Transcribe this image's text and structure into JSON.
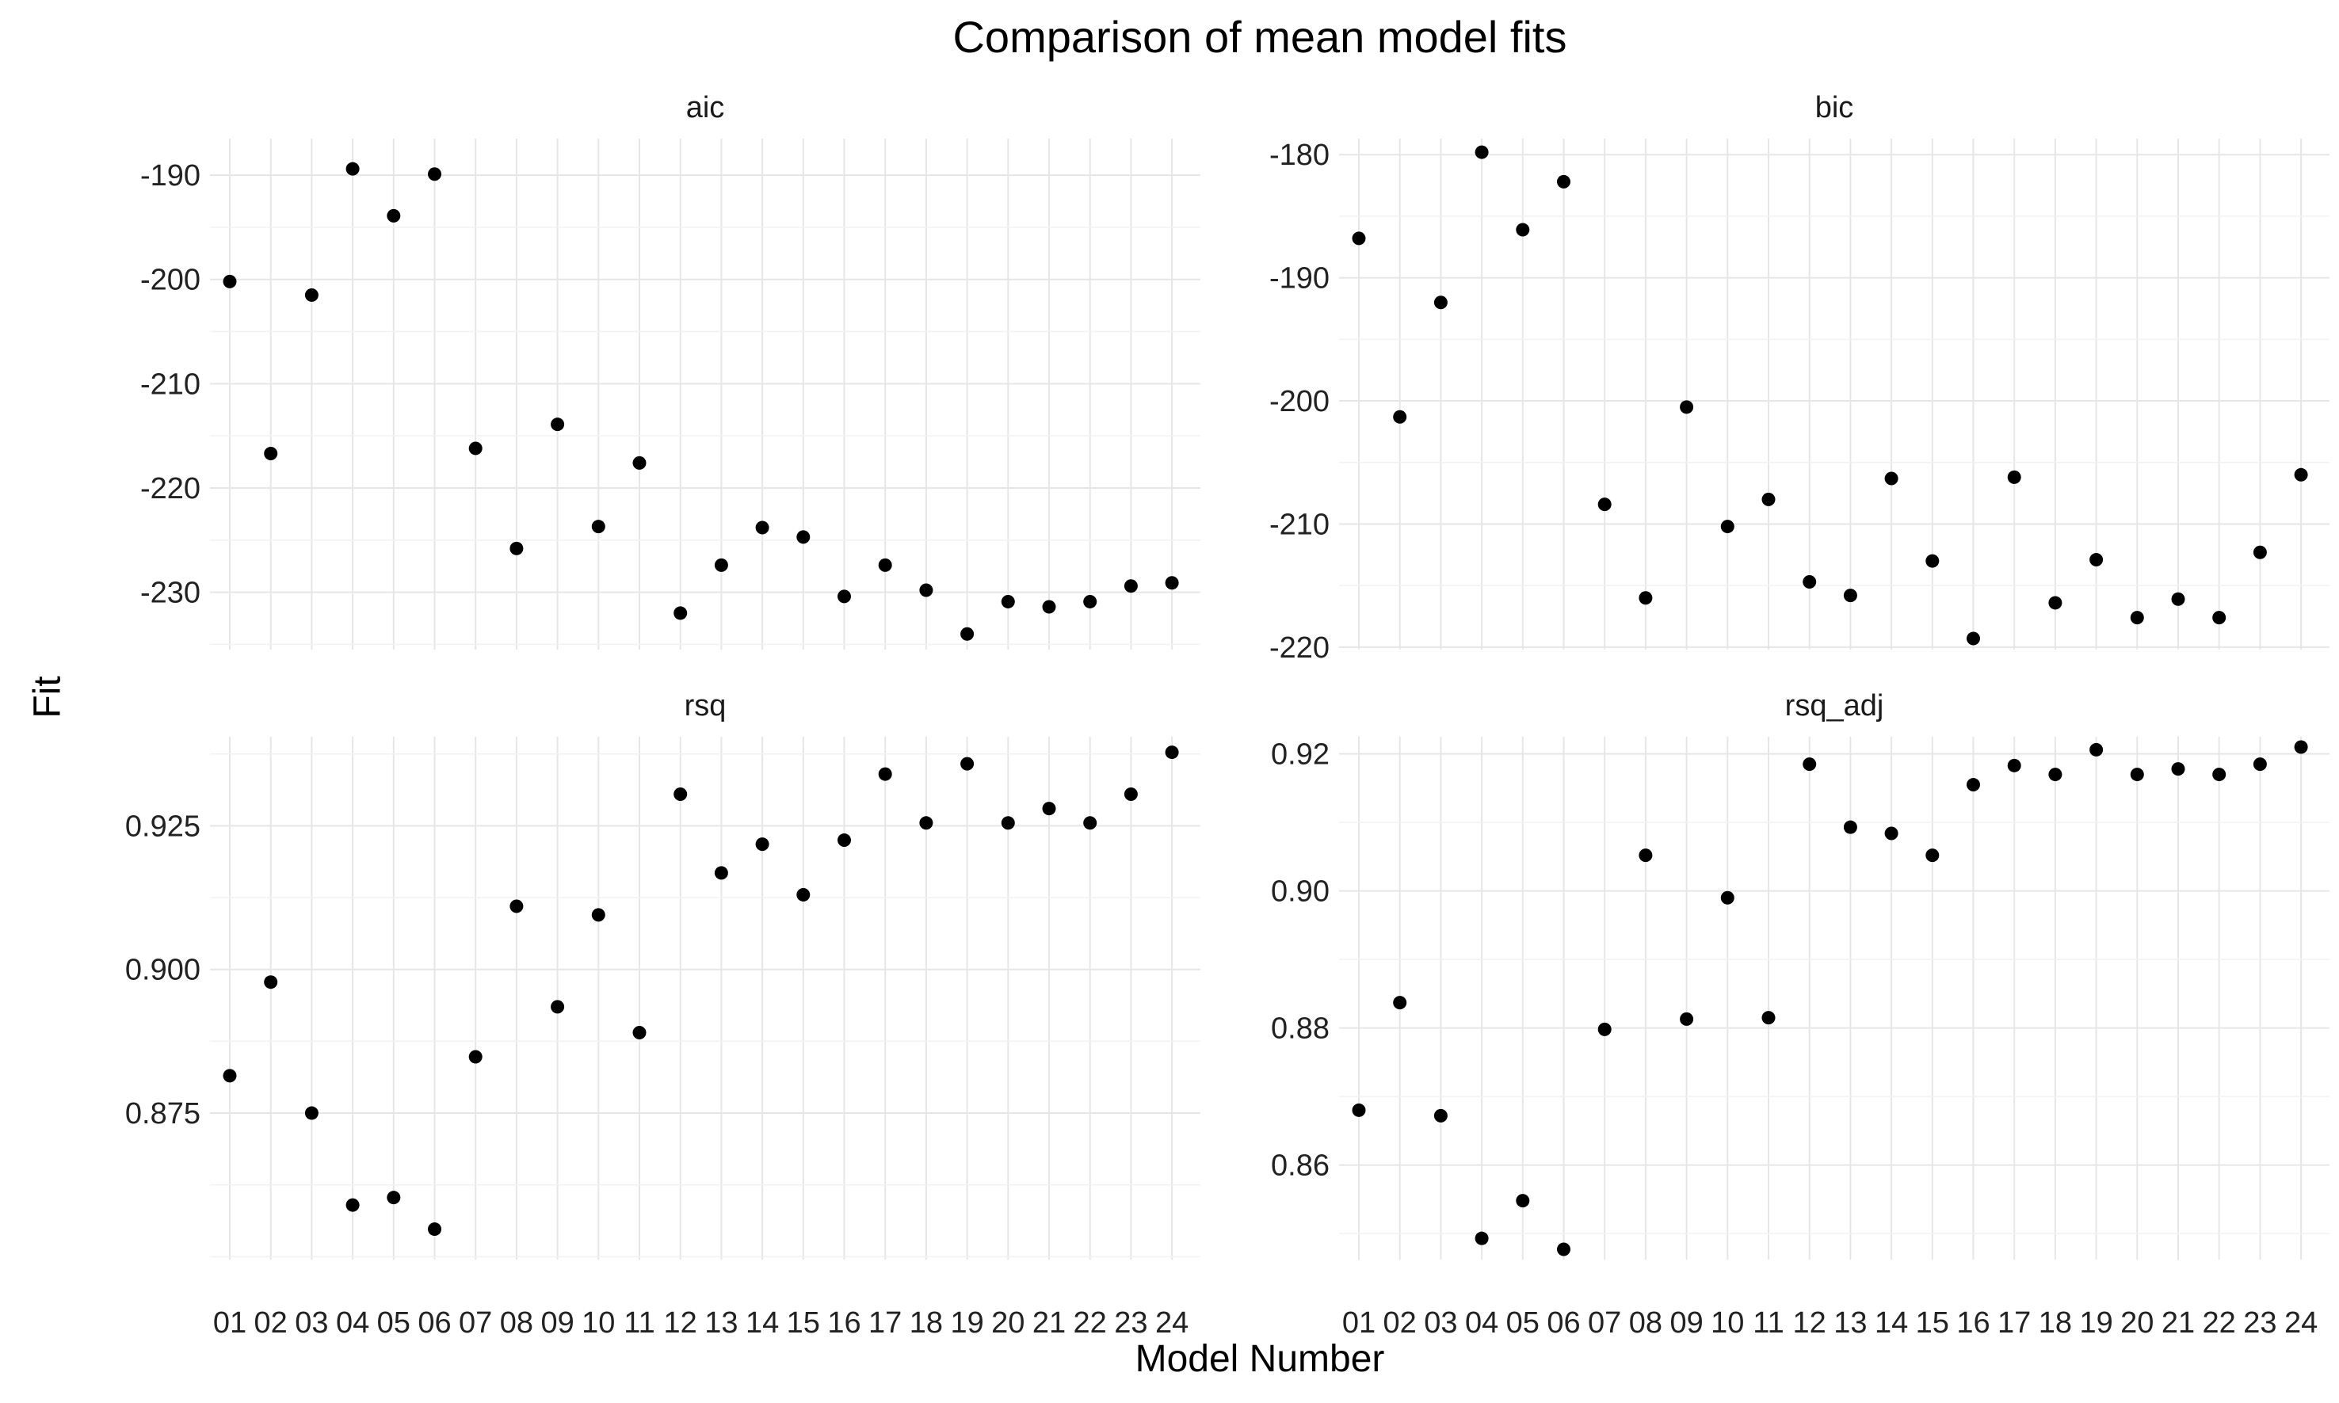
{
  "chart_data": {
    "type": "scatter",
    "title": "Comparison of mean model fits",
    "xlabel": "Model Number",
    "ylabel": "Fit",
    "grid": true,
    "facets": [
      {
        "name": "aic",
        "categories": [
          "01",
          "02",
          "03",
          "04",
          "05",
          "06",
          "07",
          "08",
          "09",
          "10",
          "11",
          "12",
          "13",
          "14",
          "15",
          "16",
          "17",
          "18",
          "19",
          "20",
          "21",
          "22",
          "23",
          "24"
        ],
        "values": [
          -200.2,
          -216.7,
          -201.5,
          -189.4,
          -193.9,
          -189.9,
          -216.2,
          -225.8,
          -213.9,
          -223.7,
          -217.6,
          -232.0,
          -227.4,
          -223.8,
          -224.7,
          -230.4,
          -227.4,
          -229.8,
          -234.0,
          -230.9,
          -231.4,
          -230.9,
          -229.4,
          -229.1
        ],
        "yticks": [
          -190,
          -200,
          -210,
          -220,
          -230
        ],
        "ylim": [
          -235.5,
          -186.5
        ]
      },
      {
        "name": "bic",
        "categories": [
          "01",
          "02",
          "03",
          "04",
          "05",
          "06",
          "07",
          "08",
          "09",
          "10",
          "11",
          "12",
          "13",
          "14",
          "15",
          "16",
          "17",
          "18",
          "19",
          "20",
          "21",
          "22",
          "23",
          "24"
        ],
        "values": [
          -186.8,
          -201.3,
          -192.0,
          -179.8,
          -186.1,
          -182.2,
          -208.4,
          -216.0,
          -200.5,
          -210.2,
          -208.0,
          -214.7,
          -215.8,
          -206.3,
          -213.0,
          -219.3,
          -206.2,
          -216.4,
          -212.9,
          -217.6,
          -216.1,
          -217.6,
          -212.3,
          -206.0
        ],
        "yticks": [
          -180,
          -190,
          -200,
          -210,
          -220
        ],
        "ylim": [
          -220.2,
          -178.7
        ]
      },
      {
        "name": "rsq",
        "categories": [
          "01",
          "02",
          "03",
          "04",
          "05",
          "06",
          "07",
          "08",
          "09",
          "10",
          "11",
          "12",
          "13",
          "14",
          "15",
          "16",
          "17",
          "18",
          "19",
          "20",
          "21",
          "22",
          "23",
          "24"
        ],
        "values": [
          0.8815,
          0.8978,
          0.875,
          0.859,
          0.8603,
          0.8548,
          0.8848,
          0.911,
          0.8935,
          0.9095,
          0.889,
          0.9305,
          0.9168,
          0.9218,
          0.913,
          0.9225,
          0.934,
          0.9255,
          0.9358,
          0.9255,
          0.928,
          0.9255,
          0.9305,
          0.9378
        ],
        "yticks": [
          0.875,
          0.9,
          0.925
        ],
        "ylim": [
          0.8495,
          0.9405
        ]
      },
      {
        "name": "rsq_adj",
        "categories": [
          "01",
          "02",
          "03",
          "04",
          "05",
          "06",
          "07",
          "08",
          "09",
          "10",
          "11",
          "12",
          "13",
          "14",
          "15",
          "16",
          "17",
          "18",
          "19",
          "20",
          "21",
          "22",
          "23",
          "24"
        ],
        "values": [
          0.868,
          0.8837,
          0.8672,
          0.8493,
          0.8548,
          0.8477,
          0.8798,
          0.9052,
          0.8813,
          0.899,
          0.8815,
          0.9185,
          0.9093,
          0.9084,
          0.9052,
          0.9155,
          0.9183,
          0.917,
          0.9206,
          0.917,
          0.9178,
          0.917,
          0.9185,
          0.921
        ],
        "yticks": [
          0.86,
          0.88,
          0.9,
          0.92
        ],
        "ylim": [
          0.8462,
          0.9225
        ]
      }
    ]
  },
  "colors": {
    "point": "#000000",
    "grid_major": "#e6e6e6",
    "grid_minor": "#f2f2f2",
    "background": "#ffffff"
  }
}
